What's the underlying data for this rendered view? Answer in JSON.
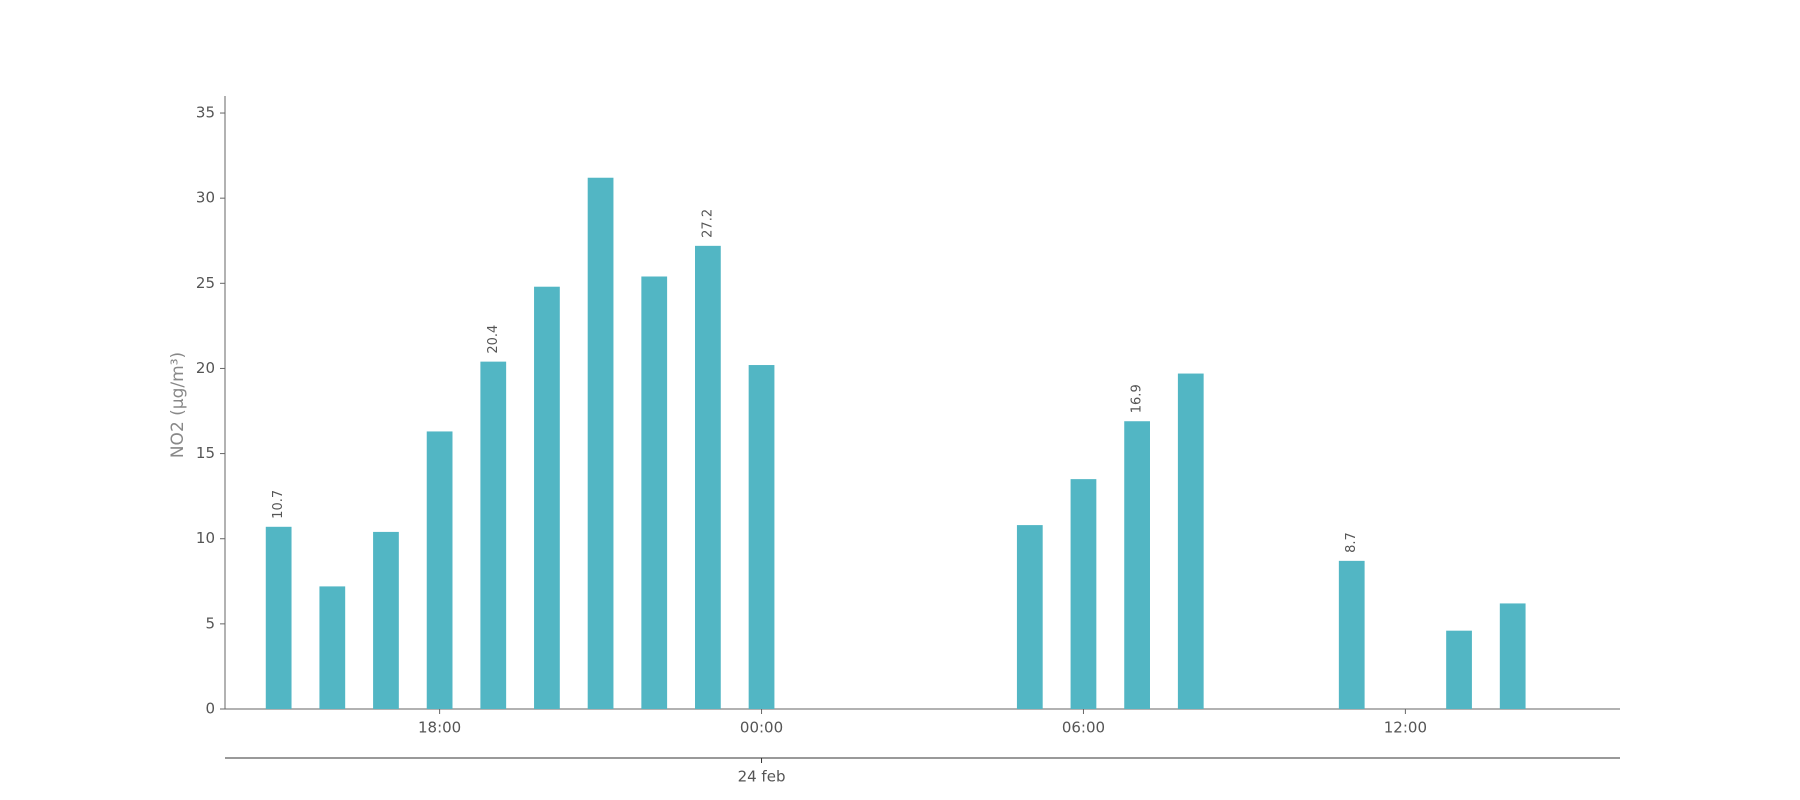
{
  "chart_data": {
    "type": "bar",
    "y_label": "NO2 (μg/m³)",
    "x": [
      15,
      16,
      17,
      18,
      19,
      20,
      21,
      22,
      23,
      24,
      29,
      30,
      31,
      32,
      35,
      37,
      38
    ],
    "values": [
      10.7,
      7.2,
      10.4,
      16.3,
      20.4,
      24.8,
      31.2,
      25.4,
      27.2,
      20.2,
      10.8,
      13.5,
      16.9,
      19.7,
      8.7,
      4.6,
      6.2
    ],
    "value_labels": [
      "10.7",
      null,
      null,
      null,
      "20.4",
      null,
      null,
      null,
      "27.2",
      null,
      null,
      null,
      "16.9",
      null,
      "8.7",
      null,
      null
    ],
    "color": "#52b6c4",
    "xlim": [
      14,
      40
    ],
    "xticks": [
      {
        "value": 18,
        "label": "18:00"
      },
      {
        "value": 24,
        "label": "00:00"
      },
      {
        "value": 30,
        "label": "06:00"
      },
      {
        "value": 36,
        "label": "12:00"
      }
    ],
    "xticks_secondary": [
      {
        "value": 24,
        "label": "24 feb"
      }
    ],
    "ylim": [
      0,
      36
    ],
    "yticks": [
      0,
      5,
      10,
      15,
      20,
      25,
      30,
      35
    ]
  }
}
